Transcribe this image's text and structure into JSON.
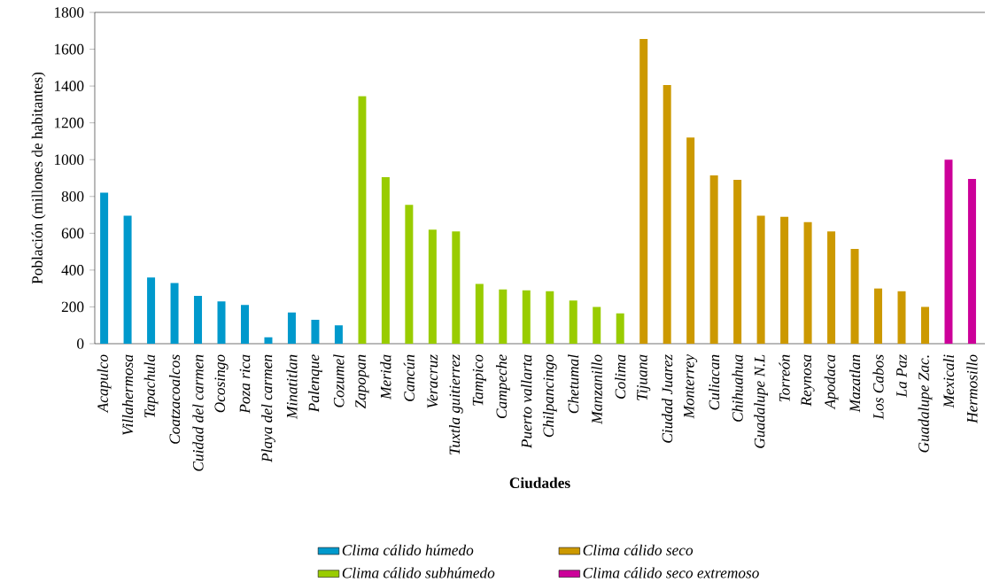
{
  "chart_data": {
    "type": "bar",
    "xlabel": "Ciudades",
    "ylabel": "Población (millones de habitantes)",
    "categories": [
      "Acapulco",
      "Villahermosa",
      "Tapachula",
      "Coatzacoalcos",
      "Cuidad del carmen",
      "Ocosingo",
      "Poza rica",
      "Playa del carmen",
      "Minatitlan",
      "Palenque",
      "Cozumel",
      "Zapopan",
      "Merida",
      "Cancún",
      "Veracruz",
      "Tuxtla guitierrez",
      "Tampico",
      "Campeche",
      "Puerto vallarta",
      "Chilpancingo",
      "Chetumal",
      "Manzanillo",
      "Colima",
      "Tijuana",
      "Ciudad Juarez",
      "Monterrey",
      "Culiacan",
      "Chihuahua",
      "Guadalupe N.L",
      "Torreón",
      "Reynosa",
      "Apodaca",
      "Mazatlan",
      "Los Cabos",
      "La Paz",
      "Guadalupe Zac.",
      "Mexicali",
      "Hermosillo"
    ],
    "series": [
      {
        "name": "Clima cálido húmedo",
        "color": "#0099cc",
        "values": [
          820,
          695,
          360,
          330,
          260,
          230,
          210,
          35,
          170,
          130,
          100,
          null,
          null,
          null,
          null,
          null,
          null,
          null,
          null,
          null,
          null,
          null,
          null,
          null,
          null,
          null,
          null,
          null,
          null,
          null,
          null,
          null,
          null,
          null,
          null,
          null,
          null,
          null
        ]
      },
      {
        "name": "Clima cálido subhúmedo",
        "color": "#99cc00",
        "values": [
          null,
          null,
          null,
          null,
          null,
          null,
          null,
          null,
          null,
          null,
          null,
          1345,
          905,
          755,
          620,
          610,
          325,
          295,
          290,
          285,
          235,
          200,
          165,
          null,
          null,
          null,
          null,
          null,
          null,
          null,
          null,
          null,
          null,
          null,
          null,
          null,
          null,
          null
        ]
      },
      {
        "name": "Clima cálido seco",
        "color": "#cc9900",
        "values": [
          null,
          null,
          null,
          null,
          null,
          null,
          null,
          null,
          null,
          null,
          null,
          null,
          null,
          null,
          null,
          null,
          null,
          null,
          null,
          null,
          null,
          null,
          null,
          1655,
          1405,
          1120,
          915,
          890,
          695,
          690,
          660,
          610,
          515,
          300,
          285,
          200,
          null,
          null
        ]
      },
      {
        "name": "Clima cálido seco extremoso",
        "color": "#cc0099",
        "values": [
          null,
          null,
          null,
          null,
          null,
          null,
          null,
          null,
          null,
          null,
          null,
          null,
          null,
          null,
          null,
          null,
          null,
          null,
          null,
          null,
          null,
          null,
          null,
          null,
          null,
          null,
          null,
          null,
          null,
          null,
          null,
          null,
          null,
          null,
          null,
          null,
          1000,
          895
        ]
      }
    ],
    "ylim": [
      0,
      1800
    ],
    "yticks": [
      0,
      200,
      400,
      600,
      800,
      1000,
      1200,
      1400,
      1600,
      1800
    ],
    "legend": "bottom"
  }
}
